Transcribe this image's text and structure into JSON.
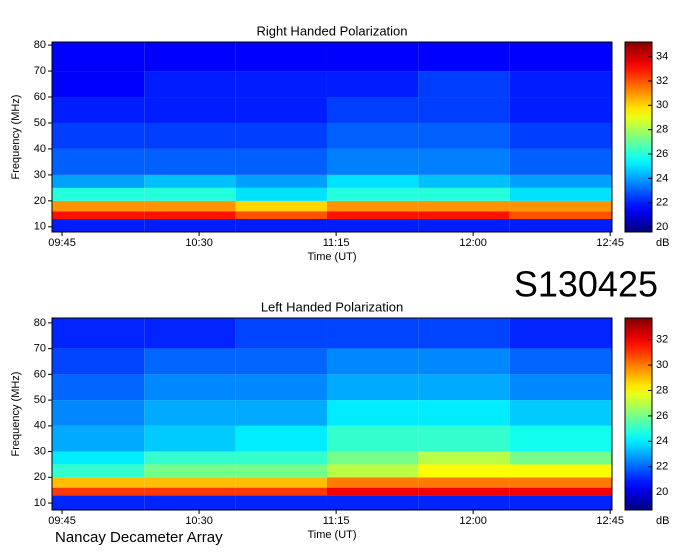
{
  "chart_data": [
    {
      "type": "heatmap",
      "title": "Right Handed Polarization",
      "x_label": "Time (UT)",
      "y_label": "Frequency (MHz)",
      "colorbar_label": "dB",
      "xlim": [
        9.695,
        12.76
      ],
      "ylim": [
        8,
        81.2
      ],
      "xticks": [
        {
          "value": 9.75,
          "label": "09:45"
        },
        {
          "value": 10.5,
          "label": "10:30"
        },
        {
          "value": 11.25,
          "label": "11:15"
        },
        {
          "value": 12,
          "label": "12:00"
        },
        {
          "value": 12.75,
          "label": "12:45"
        }
      ],
      "yticks": [
        10,
        20,
        30,
        40,
        50,
        60,
        70,
        80
      ],
      "clim": [
        19.6,
        35.2
      ],
      "cticks": [
        20,
        22,
        24,
        26,
        28,
        30,
        32,
        34
      ],
      "x_edges": [
        9.695,
        10.2,
        10.7,
        11.2,
        11.7,
        12.2,
        12.76
      ],
      "y_edges": [
        8,
        13,
        16,
        20,
        25,
        30,
        40,
        50,
        60,
        70,
        81.2
      ],
      "z": [
        [
          22,
          22,
          22,
          22,
          22,
          22
        ],
        [
          33,
          33,
          32,
          33,
          33,
          32
        ],
        [
          31,
          31,
          30,
          31,
          31,
          31
        ],
        [
          26,
          26,
          25,
          26,
          26,
          25
        ],
        [
          24,
          24.5,
          24,
          25,
          24.5,
          24
        ],
        [
          23,
          23,
          23,
          23.5,
          23.5,
          23
        ],
        [
          22.5,
          22.5,
          22.5,
          23,
          23,
          22.5
        ],
        [
          22,
          22,
          22,
          22.5,
          22.5,
          22
        ],
        [
          21.5,
          22,
          22,
          22,
          22.5,
          22
        ],
        [
          21.5,
          21.5,
          21.5,
          21.5,
          21.5,
          21.5
        ]
      ]
    },
    {
      "type": "heatmap",
      "title": "Left Handed Polarization",
      "x_label": "Time (UT)",
      "y_label": "Frequency (MHz)",
      "colorbar_label": "dB",
      "xlim": [
        9.695,
        12.76
      ],
      "ylim": [
        7.3,
        81.9
      ],
      "xticks": [
        {
          "value": 9.75,
          "label": "09:45"
        },
        {
          "value": 10.5,
          "label": "10:30"
        },
        {
          "value": 11.25,
          "label": "11:15"
        },
        {
          "value": 12,
          "label": "12:00"
        },
        {
          "value": 12.75,
          "label": "12:45"
        }
      ],
      "yticks": [
        10,
        20,
        30,
        40,
        50,
        60,
        70,
        80
      ],
      "clim": [
        18.6,
        33.7
      ],
      "cticks": [
        20,
        22,
        24,
        26,
        28,
        30,
        32
      ],
      "x_edges": [
        9.695,
        10.2,
        10.7,
        11.2,
        11.7,
        12.2,
        12.76
      ],
      "y_edges": [
        7.3,
        13,
        16,
        20,
        25,
        30,
        40,
        50,
        60,
        70,
        81.9
      ],
      "z": [
        [
          21,
          21,
          21,
          21,
          21,
          21
        ],
        [
          31,
          31,
          31,
          32,
          32,
          32
        ],
        [
          29,
          29,
          29,
          30,
          30,
          30
        ],
        [
          25,
          26,
          26,
          27,
          28,
          28
        ],
        [
          24,
          25,
          25,
          26,
          27,
          26
        ],
        [
          23,
          23.5,
          24,
          25,
          25,
          24.5
        ],
        [
          22.5,
          23,
          23,
          24,
          24,
          23.5
        ],
        [
          22,
          22.5,
          22.5,
          23,
          23,
          22.5
        ],
        [
          21.5,
          22,
          22,
          22.5,
          22.5,
          22
        ],
        [
          21,
          21,
          21.5,
          21.5,
          21.5,
          21
        ]
      ]
    }
  ],
  "label": "S130425",
  "footer": "Nancay Decameter Array"
}
